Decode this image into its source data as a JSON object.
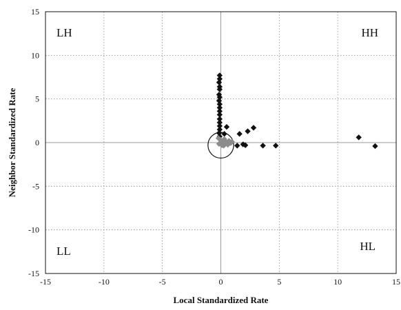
{
  "chart_data": {
    "type": "scatter",
    "xlabel": "Local Standardized Rate",
    "ylabel": "Neighbor Standardized Rate",
    "xlim": [
      -15,
      15
    ],
    "ylim": [
      -15,
      15
    ],
    "xticks": [
      -15,
      -10,
      -5,
      0,
      5,
      10,
      15
    ],
    "yticks": [
      -15,
      -10,
      -5,
      0,
      5,
      10,
      15
    ],
    "grid": true,
    "quadrant_labels": {
      "lh": "LH",
      "hh": "HH",
      "ll": "LL",
      "hl": "HL"
    },
    "series": [
      {
        "marker": "diamond",
        "color": "#111111",
        "points": [
          [
            -0.1,
            7.7
          ],
          [
            -0.1,
            7.3
          ],
          [
            -0.15,
            6.9
          ],
          [
            -0.1,
            6.4
          ],
          [
            -0.1,
            6.1
          ],
          [
            -0.15,
            5.5
          ],
          [
            -0.1,
            5.2
          ],
          [
            -0.15,
            4.8
          ],
          [
            -0.1,
            4.4
          ],
          [
            -0.1,
            4.0
          ],
          [
            -0.1,
            3.6
          ],
          [
            -0.1,
            3.2
          ],
          [
            -0.1,
            2.7
          ],
          [
            -0.1,
            2.3
          ],
          [
            -0.1,
            1.9
          ],
          [
            -0.1,
            1.5
          ],
          [
            -0.15,
            1.1
          ],
          [
            -0.1,
            0.7
          ],
          [
            0.3,
            1.0
          ],
          [
            0.5,
            1.8
          ],
          [
            1.6,
            1.0
          ],
          [
            2.3,
            1.3
          ],
          [
            2.8,
            1.7
          ],
          [
            1.4,
            -0.35
          ],
          [
            1.9,
            -0.2
          ],
          [
            2.1,
            -0.3
          ],
          [
            3.6,
            -0.35
          ],
          [
            4.7,
            -0.35
          ],
          [
            11.8,
            0.6
          ],
          [
            13.2,
            -0.4
          ]
        ]
      },
      {
        "marker": "diamond",
        "color": "#8c8c8c",
        "points": [
          [
            -0.2,
            0.5
          ],
          [
            0.0,
            0.3
          ],
          [
            0.15,
            0.1
          ],
          [
            0.3,
            0.4
          ],
          [
            0.5,
            0.0
          ],
          [
            0.7,
            0.2
          ],
          [
            0.85,
            -0.05
          ],
          [
            0.6,
            -0.25
          ],
          [
            0.35,
            -0.2
          ],
          [
            0.1,
            -0.3
          ],
          [
            -0.15,
            -0.15
          ],
          [
            0.0,
            0.05
          ],
          [
            0.4,
            0.15
          ],
          [
            0.95,
            0.1
          ],
          [
            0.25,
            -0.35
          ]
        ]
      }
    ],
    "circle": {
      "cx": 0,
      "cy": -0.3,
      "r": 1.1
    }
  }
}
